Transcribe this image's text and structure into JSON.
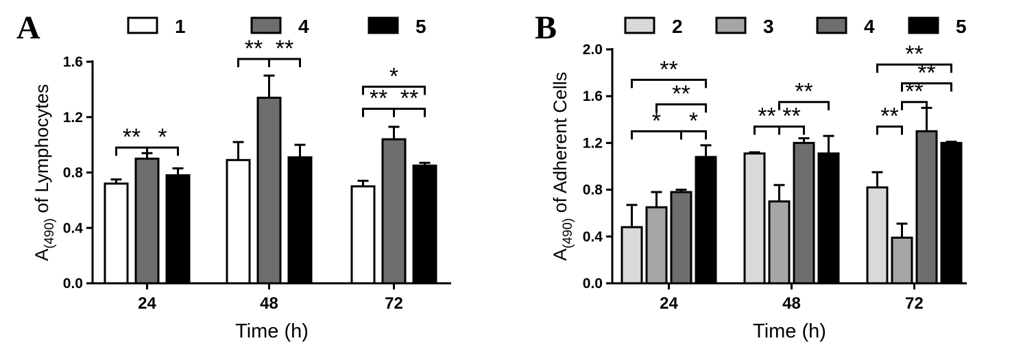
{
  "chart_data": [
    {
      "type": "bar",
      "panel": "A",
      "categories": [
        "24",
        "48",
        "72"
      ],
      "xlabel": "Time (h)",
      "ylabel": {
        "prefix": "A",
        "subscript": "(490)",
        "suffix": " of  Lymphocytes"
      },
      "ylim": [
        0,
        1.6
      ],
      "yticks": [
        "0.0",
        "0.4",
        "0.8",
        "1.2",
        "1.6"
      ],
      "legend_position": "top",
      "series": [
        {
          "name": "1",
          "color": "#ffffff",
          "values": [
            0.72,
            0.89,
            0.7
          ],
          "errors": [
            0.03,
            0.13,
            0.04
          ]
        },
        {
          "name": "4",
          "color": "#6e6e6e",
          "values": [
            0.9,
            1.34,
            1.04
          ],
          "errors": [
            0.04,
            0.16,
            0.09
          ]
        },
        {
          "name": "5",
          "color": "#000000",
          "values": [
            0.78,
            0.91,
            0.85
          ],
          "errors": [
            0.05,
            0.09,
            0.02
          ]
        }
      ],
      "significance": [
        {
          "category": 0,
          "from": 0,
          "to": 1,
          "label": "**",
          "level": 0.98
        },
        {
          "category": 0,
          "from": 1,
          "to": 2,
          "label": "*",
          "level": 0.98
        },
        {
          "category": 1,
          "from": 0,
          "to": 1,
          "label": "**",
          "level": 1.62
        },
        {
          "category": 1,
          "from": 1,
          "to": 2,
          "label": "**",
          "level": 1.62
        },
        {
          "category": 2,
          "from": 0,
          "to": 1,
          "label": "**",
          "level": 1.26
        },
        {
          "category": 2,
          "from": 1,
          "to": 2,
          "label": "**",
          "level": 1.26
        },
        {
          "category": 2,
          "from": 0,
          "to": 2,
          "label": "*",
          "level": 1.42
        }
      ]
    },
    {
      "type": "bar",
      "panel": "B",
      "categories": [
        "24",
        "48",
        "72"
      ],
      "xlabel": "Time (h)",
      "ylabel": {
        "prefix": "A",
        "subscript": "(490)",
        "suffix": " of Adherent Cells"
      },
      "ylim": [
        0,
        2.0
      ],
      "yticks": [
        "0.0",
        "0.4",
        "0.8",
        "1.2",
        "1.6",
        "2.0"
      ],
      "legend_position": "top",
      "series": [
        {
          "name": "2",
          "color": "#d9d9d9",
          "values": [
            0.48,
            1.11,
            0.82
          ],
          "errors": [
            0.19,
            0.01,
            0.13
          ]
        },
        {
          "name": "3",
          "color": "#a6a6a6",
          "values": [
            0.65,
            0.7,
            0.39
          ],
          "errors": [
            0.13,
            0.14,
            0.12
          ]
        },
        {
          "name": "4",
          "color": "#6e6e6e",
          "values": [
            0.78,
            1.2,
            1.3
          ],
          "errors": [
            0.02,
            0.04,
            0.2
          ]
        },
        {
          "name": "5",
          "color": "#000000",
          "values": [
            1.08,
            1.11,
            1.2
          ],
          "errors": [
            0.1,
            0.15,
            0.01
          ]
        }
      ],
      "significance": [
        {
          "category": 0,
          "from": 0,
          "to": 2,
          "label": "*",
          "level": 1.3
        },
        {
          "category": 0,
          "from": 2,
          "to": 3,
          "label": "*",
          "level": 1.3
        },
        {
          "category": 0,
          "from": 1,
          "to": 3,
          "label": "**",
          "level": 1.53
        },
        {
          "category": 0,
          "from": 0,
          "to": 3,
          "label": "**",
          "level": 1.74
        },
        {
          "category": 1,
          "from": 0,
          "to": 1,
          "label": "**",
          "level": 1.34
        },
        {
          "category": 1,
          "from": 1,
          "to": 2,
          "label": "**",
          "level": 1.34
        },
        {
          "category": 1,
          "from": 1,
          "to": 3,
          "label": "**",
          "level": 1.55
        },
        {
          "category": 2,
          "from": 0,
          "to": 1,
          "label": "**",
          "level": 1.34
        },
        {
          "category": 2,
          "from": 1,
          "to": 2,
          "label": "**",
          "level": 1.55
        },
        {
          "category": 2,
          "from": 1,
          "to": 3,
          "label": "**",
          "level": 1.71
        },
        {
          "category": 2,
          "from": 0,
          "to": 3,
          "label": "**",
          "level": 1.87
        }
      ]
    }
  ]
}
